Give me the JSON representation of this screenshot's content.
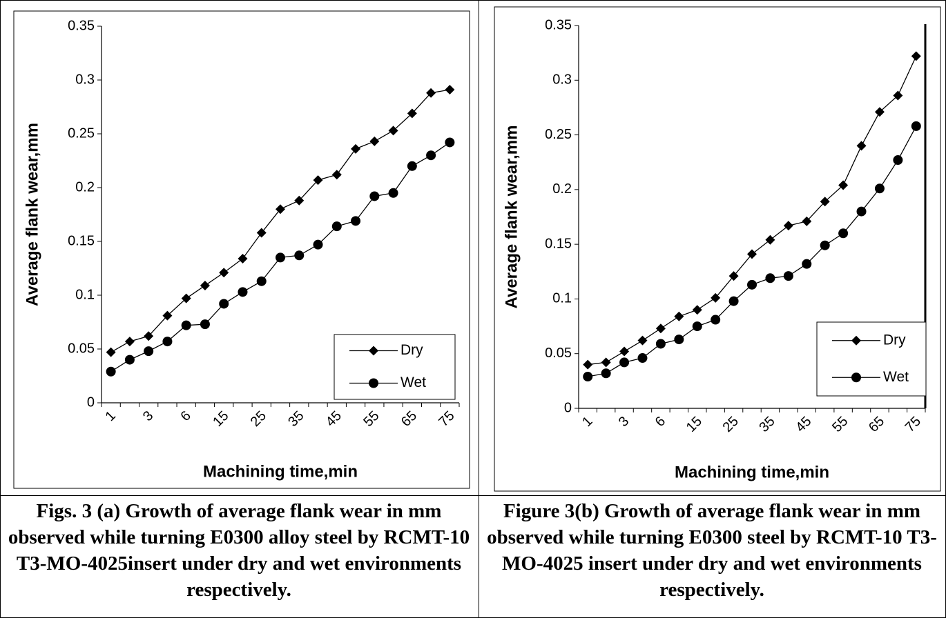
{
  "chart_data": [
    {
      "type": "line",
      "caption": "Figs. 3 (a)  Growth of average flank wear in mm observed while turning E0300 alloy steel by RCMT-10 T3-MO-4025insert under dry and wet environments respectively.",
      "x_label": "Machining time,min",
      "y_label": "Average flank wear,mm",
      "categories": [
        "1",
        null,
        "3",
        null,
        "6",
        null,
        "15",
        null,
        "25",
        null,
        "35",
        null,
        "45",
        null,
        "55",
        null,
        "65",
        null,
        "75"
      ],
      "series": [
        {
          "name": "Dry",
          "color": "#000000",
          "marker": "diamond",
          "values": [
            0.047,
            0.057,
            0.062,
            0.081,
            0.097,
            0.109,
            0.121,
            0.134,
            0.158,
            0.18,
            0.188,
            0.207,
            0.212,
            0.236,
            0.243,
            0.253,
            0.269,
            0.288,
            0.291
          ]
        },
        {
          "name": "Wet",
          "color": "#000000",
          "marker": "circle",
          "values": [
            0.029,
            0.04,
            0.048,
            0.057,
            0.072,
            0.073,
            0.092,
            0.103,
            0.113,
            0.135,
            0.137,
            0.147,
            0.164,
            0.169,
            0.192,
            0.195,
            0.22,
            0.23,
            0.242
          ]
        }
      ],
      "ylim": [
        0,
        0.35
      ],
      "yticks": [
        0,
        0.05,
        0.1,
        0.15,
        0.2,
        0.25,
        0.3,
        0.35
      ],
      "legend": "lower right"
    },
    {
      "type": "line",
      "caption": "Figure  3(b) Growth of average flank wear in mm observed while turning E0300 steel by RCMT-10 T3-MO-4025  insert under dry and wet environments respectively.",
      "x_label": "Machining time,min",
      "y_label": "Average flank wear,mm",
      "categories": [
        "1",
        null,
        "3",
        null,
        "6",
        null,
        "15",
        null,
        "25",
        null,
        "35",
        null,
        "45",
        null,
        "55",
        null,
        "65",
        null,
        "75"
      ],
      "series": [
        {
          "name": "Dry",
          "color": "#000000",
          "marker": "diamond",
          "values": [
            0.04,
            0.042,
            0.052,
            0.062,
            0.073,
            0.084,
            0.09,
            0.101,
            0.121,
            0.141,
            0.154,
            0.167,
            0.171,
            0.189,
            0.204,
            0.24,
            0.271,
            0.286,
            0.322
          ]
        },
        {
          "name": "Wet",
          "color": "#000000",
          "marker": "circle",
          "values": [
            0.029,
            0.032,
            0.042,
            0.046,
            0.059,
            0.063,
            0.075,
            0.081,
            0.098,
            0.113,
            0.119,
            0.121,
            0.132,
            0.149,
            0.16,
            0.18,
            0.201,
            0.227,
            0.258
          ]
        }
      ],
      "ylim": [
        0,
        0.35
      ],
      "yticks": [
        0,
        0.05,
        0.1,
        0.15,
        0.2,
        0.25,
        0.3,
        0.35
      ],
      "legend": "lower right"
    }
  ]
}
